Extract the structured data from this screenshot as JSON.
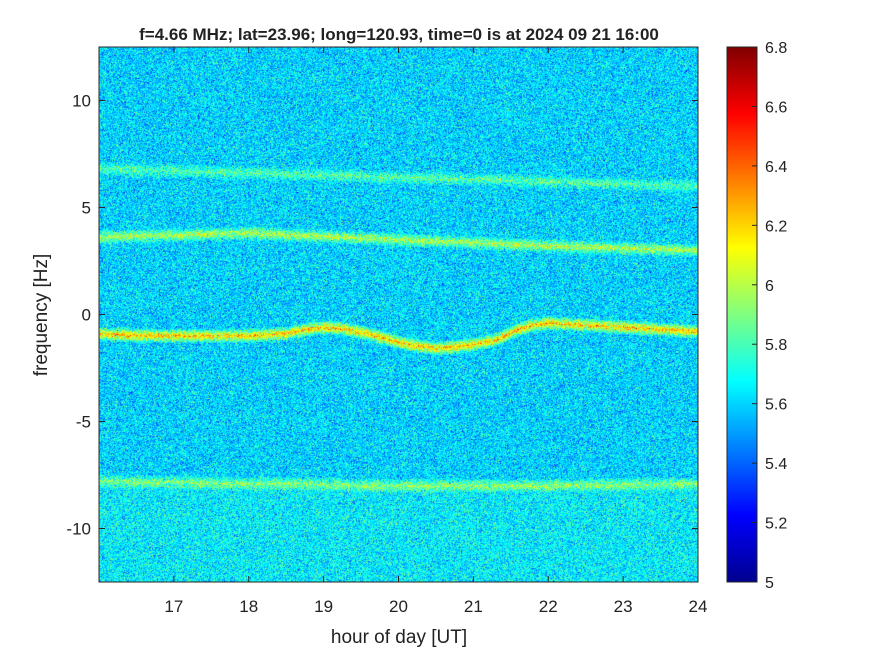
{
  "chart_data": {
    "type": "heatmap",
    "title": "f=4.66 MHz;  lat=23.96; long=120.93, time=0 is at 2024 09 21 16:00",
    "xlabel": "hour of day [UT]",
    "ylabel": "frequency [Hz]",
    "xlim": [
      16,
      24
    ],
    "ylim": [
      -12.5,
      12.5
    ],
    "x_ticks": [
      17,
      18,
      19,
      20,
      21,
      22,
      23,
      24
    ],
    "x_tick_labels": [
      "17",
      "18",
      "19",
      "20",
      "21",
      "22",
      "23",
      "24"
    ],
    "y_ticks": [
      10,
      5,
      0,
      -5,
      -10
    ],
    "y_tick_labels": [
      "10",
      "5",
      "0",
      "-5",
      "-10"
    ],
    "colorbar": {
      "colormap": "jet",
      "range": [
        5,
        6.8
      ],
      "ticks": [
        6.8,
        6.6,
        6.4,
        6.2,
        6,
        5.8,
        5.6,
        5.4,
        5.2,
        5
      ],
      "tick_labels": [
        "6.8",
        "6.6",
        "6.4",
        "6.2",
        "6",
        "5.8",
        "5.6",
        "5.4",
        "5.2",
        "5"
      ],
      "placement": "right"
    },
    "background_level": 5.6,
    "traces": [
      {
        "x": [
          16.0,
          16.5,
          17.0,
          17.5,
          18.0,
          18.5,
          18.8,
          19.0,
          19.3,
          19.6,
          20.0,
          20.3,
          20.5,
          20.8,
          21.0,
          21.3,
          21.6,
          21.8,
          22.0,
          22.5,
          23.0,
          23.5,
          24.0
        ],
        "y": [
          -0.9,
          -1.0,
          -1.0,
          -1.0,
          -1.0,
          -0.9,
          -0.7,
          -0.6,
          -0.7,
          -0.9,
          -1.3,
          -1.5,
          -1.6,
          -1.5,
          -1.4,
          -1.2,
          -0.7,
          -0.5,
          -0.4,
          -0.5,
          -0.6,
          -0.7,
          -0.8
        ],
        "level": 6.4
      },
      {
        "x": [
          16.0,
          18.0,
          20.0,
          22.0,
          24.0
        ],
        "y": [
          3.6,
          3.8,
          3.5,
          3.2,
          3.0
        ],
        "level": 6.1
      },
      {
        "x": [
          16.0,
          18.0,
          20.0,
          22.0,
          24.0
        ],
        "y": [
          6.8,
          6.6,
          6.4,
          6.2,
          6.0
        ],
        "level": 5.9
      },
      {
        "x": [
          16.0,
          18.0,
          20.0,
          22.0,
          24.0
        ],
        "y": [
          -7.8,
          -7.9,
          -8.0,
          -8.0,
          -7.9
        ],
        "level": 6.0
      }
    ],
    "grid": false
  }
}
